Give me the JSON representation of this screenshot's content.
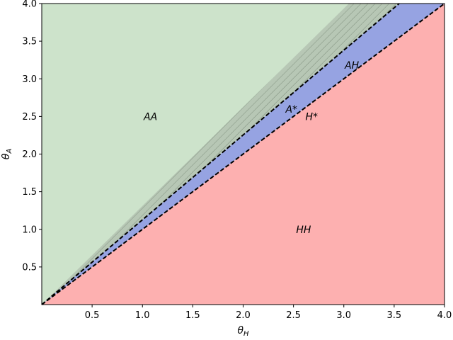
{
  "chart_data": {
    "type": "area",
    "title": "",
    "xlabel": "θ",
    "xlabel_sub": "H",
    "ylabel": "θ",
    "ylabel_sub": "A",
    "xlim": [
      0,
      4
    ],
    "ylim": [
      0,
      4
    ],
    "xticks": [
      0.5,
      1.0,
      1.5,
      2.0,
      2.5,
      3.0,
      3.5,
      4.0
    ],
    "yticks": [
      0.5,
      1.0,
      1.5,
      2.0,
      2.5,
      3.0,
      3.5,
      4.0
    ],
    "xtick_labels": [
      "0.5",
      "1.0",
      "1.5",
      "2.0",
      "2.5",
      "3.0",
      "3.5",
      "4.0"
    ],
    "ytick_labels": [
      "0.5",
      "1.0",
      "1.5",
      "2.0",
      "2.5",
      "3.0",
      "3.5",
      "4.0"
    ],
    "grid": false,
    "boundaries": [
      {
        "x": [
          0,
          3.55
        ],
        "y": [
          0,
          4.0
        ]
      },
      {
        "x": [
          0,
          4.0
        ],
        "y": [
          0,
          4.0
        ]
      }
    ],
    "hatched_band": {
      "x": [
        0,
        3.55,
        3.05
      ],
      "y": [
        0,
        4.0,
        4.0
      ]
    },
    "regions": [
      {
        "label": "AA",
        "x": 1.08,
        "y": 2.5,
        "color": "#cde3cb"
      },
      {
        "label": "AH",
        "x": 3.08,
        "y": 3.18,
        "color": "#96a3e2"
      },
      {
        "label": "A*",
        "x": 2.48,
        "y": 2.6,
        "color": "#96a3e2"
      },
      {
        "label": "H*",
        "x": 2.68,
        "y": 2.5,
        "color": "#96a3e2"
      },
      {
        "label": "HH",
        "x": 2.6,
        "y": 1.0,
        "color": "#fdb0b0"
      }
    ],
    "colors": {
      "aa": "#cde3cb",
      "hatched": "#b7c7b5",
      "middle": "#96a3e2",
      "hh": "#fdb0b0",
      "boundary": "#000000"
    }
  }
}
